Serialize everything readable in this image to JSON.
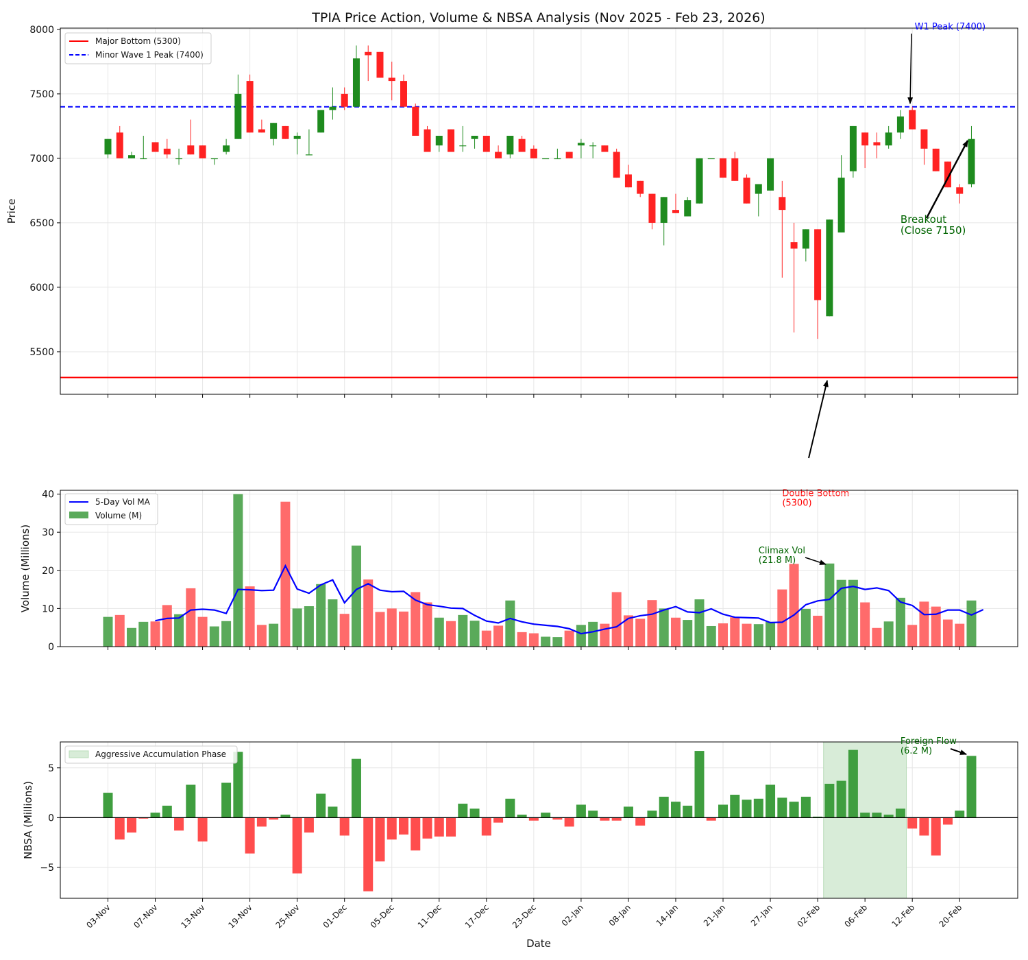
{
  "chart_data": {
    "type": "candlestick+bar",
    "title": "TPIA Price Action, Volume & NBSA Analysis (Nov 2025 - Feb 23, 2026)",
    "xlabel": "Date",
    "x_ticks": [
      {
        "i": 0,
        "label": "03-Nov"
      },
      {
        "i": 4,
        "label": "07-Nov"
      },
      {
        "i": 8,
        "label": "13-Nov"
      },
      {
        "i": 12,
        "label": "19-Nov"
      },
      {
        "i": 16,
        "label": "25-Nov"
      },
      {
        "i": 20,
        "label": "01-Dec"
      },
      {
        "i": 24,
        "label": "05-Dec"
      },
      {
        "i": 28,
        "label": "11-Dec"
      },
      {
        "i": 32,
        "label": "17-Dec"
      },
      {
        "i": 36,
        "label": "23-Dec"
      },
      {
        "i": 40,
        "label": "02-Jan"
      },
      {
        "i": 44,
        "label": "08-Jan"
      },
      {
        "i": 48,
        "label": "14-Jan"
      },
      {
        "i": 52,
        "label": "21-Jan"
      },
      {
        "i": 56,
        "label": "27-Jan"
      },
      {
        "i": 60,
        "label": "02-Feb"
      },
      {
        "i": 64,
        "label": "06-Feb"
      },
      {
        "i": 68,
        "label": "12-Feb"
      },
      {
        "i": 72,
        "label": "20-Feb"
      }
    ],
    "colors": {
      "up": "#1e8b1e",
      "down": "#ff2222",
      "vol_up": "#5aaa5a",
      "vol_down": "#ff6b6b",
      "ma": "#0000ff",
      "bottom": "#ff0000",
      "peak": "#0000ff",
      "accum": "#d8ecd8"
    },
    "price": {
      "ylabel": "Price",
      "ylim": [
        5170,
        8010
      ],
      "yticks": [
        5500,
        6000,
        6500,
        7000,
        7500,
        8000
      ],
      "legend": [
        {
          "label": "Major Bottom (5300)",
          "style": "solid",
          "color": "#ff0000"
        },
        {
          "label": "Minor Wave 1 Peak (7400)",
          "style": "dashed",
          "color": "#0000ff"
        }
      ],
      "hlines": [
        {
          "y": 5300,
          "color": "#ff0000",
          "style": "solid"
        },
        {
          "y": 7400,
          "color": "#0000ff",
          "style": "dashed"
        }
      ],
      "candles": [
        {
          "o": 7030,
          "h": 7150,
          "l": 7000,
          "c": 7150
        },
        {
          "o": 7200,
          "h": 7250,
          "l": 7000,
          "c": 7000
        },
        {
          "o": 7000,
          "h": 7050,
          "l": 7000,
          "c": 7025
        },
        {
          "o": 7000,
          "h": 7175,
          "l": 7000,
          "c": 7000
        },
        {
          "o": 7125,
          "h": 7125,
          "l": 7050,
          "c": 7050
        },
        {
          "o": 7075,
          "h": 7150,
          "l": 7000,
          "c": 7030
        },
        {
          "o": 7000,
          "h": 7075,
          "l": 6950,
          "c": 7000
        },
        {
          "o": 7100,
          "h": 7300,
          "l": 7030,
          "c": 7030
        },
        {
          "o": 7100,
          "h": 7100,
          "l": 7000,
          "c": 7000
        },
        {
          "o": 7000,
          "h": 7000,
          "l": 6950,
          "c": 7000
        },
        {
          "o": 7050,
          "h": 7150,
          "l": 7030,
          "c": 7100
        },
        {
          "o": 7150,
          "h": 7650,
          "l": 7150,
          "c": 7500
        },
        {
          "o": 7600,
          "h": 7650,
          "l": 7200,
          "c": 7200
        },
        {
          "o": 7225,
          "h": 7300,
          "l": 7200,
          "c": 7200
        },
        {
          "o": 7150,
          "h": 7275,
          "l": 7100,
          "c": 7275
        },
        {
          "o": 7250,
          "h": 7250,
          "l": 7150,
          "c": 7150
        },
        {
          "o": 7150,
          "h": 7200,
          "l": 7030,
          "c": 7175
        },
        {
          "o": 7030,
          "h": 7225,
          "l": 7030,
          "c": 7030
        },
        {
          "o": 7200,
          "h": 7375,
          "l": 7200,
          "c": 7375
        },
        {
          "o": 7375,
          "h": 7550,
          "l": 7300,
          "c": 7400
        },
        {
          "o": 7500,
          "h": 7550,
          "l": 7375,
          "c": 7400
        },
        {
          "o": 7400,
          "h": 7875,
          "l": 7400,
          "c": 7775
        },
        {
          "o": 7825,
          "h": 7875,
          "l": 7600,
          "c": 7800
        },
        {
          "o": 7825,
          "h": 7825,
          "l": 7625,
          "c": 7625
        },
        {
          "o": 7625,
          "h": 7750,
          "l": 7450,
          "c": 7600
        },
        {
          "o": 7600,
          "h": 7650,
          "l": 7400,
          "c": 7400
        },
        {
          "o": 7400,
          "h": 7425,
          "l": 7175,
          "c": 7175
        },
        {
          "o": 7225,
          "h": 7250,
          "l": 7050,
          "c": 7050
        },
        {
          "o": 7100,
          "h": 7175,
          "l": 7050,
          "c": 7175
        },
        {
          "o": 7225,
          "h": 7225,
          "l": 7050,
          "c": 7050
        },
        {
          "o": 7100,
          "h": 7250,
          "l": 7050,
          "c": 7100
        },
        {
          "o": 7150,
          "h": 7175,
          "l": 7075,
          "c": 7175
        },
        {
          "o": 7175,
          "h": 7175,
          "l": 7050,
          "c": 7050
        },
        {
          "o": 7050,
          "h": 7100,
          "l": 7000,
          "c": 7000
        },
        {
          "o": 7030,
          "h": 7175,
          "l": 7000,
          "c": 7175
        },
        {
          "o": 7150,
          "h": 7175,
          "l": 7050,
          "c": 7050
        },
        {
          "o": 7075,
          "h": 7100,
          "l": 7000,
          "c": 7000
        },
        {
          "o": 7000,
          "h": 7000,
          "l": 7000,
          "c": 7000
        },
        {
          "o": 7000,
          "h": 7075,
          "l": 7000,
          "c": 7000
        },
        {
          "o": 7050,
          "h": 7050,
          "l": 7000,
          "c": 7000
        },
        {
          "o": 7100,
          "h": 7150,
          "l": 7000,
          "c": 7120
        },
        {
          "o": 7100,
          "h": 7125,
          "l": 7000,
          "c": 7100
        },
        {
          "o": 7100,
          "h": 7100,
          "l": 7050,
          "c": 7050
        },
        {
          "o": 7050,
          "h": 7075,
          "l": 6850,
          "c": 6850
        },
        {
          "o": 6875,
          "h": 6950,
          "l": 6775,
          "c": 6775
        },
        {
          "o": 6825,
          "h": 6825,
          "l": 6700,
          "c": 6725
        },
        {
          "o": 6725,
          "h": 6725,
          "l": 6450,
          "c": 6500
        },
        {
          "o": 6500,
          "h": 6700,
          "l": 6325,
          "c": 6700
        },
        {
          "o": 6600,
          "h": 6725,
          "l": 6575,
          "c": 6575
        },
        {
          "o": 6550,
          "h": 6700,
          "l": 6550,
          "c": 6675
        },
        {
          "o": 6650,
          "h": 7000,
          "l": 6650,
          "c": 7000
        },
        {
          "o": 7000,
          "h": 7000,
          "l": 7000,
          "c": 7000
        },
        {
          "o": 7000,
          "h": 7000,
          "l": 6850,
          "c": 6850
        },
        {
          "o": 7000,
          "h": 7050,
          "l": 6825,
          "c": 6825
        },
        {
          "o": 6850,
          "h": 6875,
          "l": 6650,
          "c": 6650
        },
        {
          "o": 6725,
          "h": 6800,
          "l": 6550,
          "c": 6800
        },
        {
          "o": 6750,
          "h": 7000,
          "l": 6750,
          "c": 7000
        },
        {
          "o": 6700,
          "h": 6825,
          "l": 6075,
          "c": 6600
        },
        {
          "o": 6350,
          "h": 6500,
          "l": 5650,
          "c": 6300
        },
        {
          "o": 6300,
          "h": 6450,
          "l": 6200,
          "c": 6450
        },
        {
          "o": 6450,
          "h": 6450,
          "l": 5600,
          "c": 5900
        },
        {
          "o": 5775,
          "h": 6525,
          "l": 5775,
          "c": 6525
        },
        {
          "o": 6425,
          "h": 7025,
          "l": 6425,
          "c": 6850
        },
        {
          "o": 6900,
          "h": 7250,
          "l": 6850,
          "c": 7250
        },
        {
          "o": 7200,
          "h": 7200,
          "l": 6925,
          "c": 7100
        },
        {
          "o": 7125,
          "h": 7200,
          "l": 7000,
          "c": 7100
        },
        {
          "o": 7100,
          "h": 7250,
          "l": 7075,
          "c": 7200
        },
        {
          "o": 7200,
          "h": 7375,
          "l": 7150,
          "c": 7325
        },
        {
          "o": 7375,
          "h": 7400,
          "l": 7225,
          "c": 7225
        },
        {
          "o": 7225,
          "h": 7225,
          "l": 6950,
          "c": 7075
        },
        {
          "o": 7075,
          "h": 7075,
          "l": 6900,
          "c": 6900
        },
        {
          "o": 6975,
          "h": 6975,
          "l": 6775,
          "c": 6775
        },
        {
          "o": 6775,
          "h": 6800,
          "l": 6650,
          "c": 6725
        },
        {
          "o": 6800,
          "h": 7250,
          "l": 6775,
          "c": 7150
        }
      ],
      "annotations": [
        {
          "id": "w1-peak",
          "text": [
            "W1 Peak (7400)"
          ],
          "color": "#0000ff",
          "xy": [
            69,
            7400
          ],
          "xytext": [
            68.2,
            8000
          ]
        },
        {
          "id": "breakout",
          "text": [
            "Breakout",
            "(Close 7150)"
          ],
          "color": "#006400",
          "xy": [
            73,
            7150
          ],
          "xytext": [
            67,
            6500
          ]
        },
        {
          "id": "double-bottom",
          "text": [
            "Double Bottom",
            "(5300)"
          ],
          "color": "#ff0000",
          "xy": [
            61,
            5300
          ],
          "xytext": [
            57,
            4380
          ]
        }
      ]
    },
    "volume": {
      "ylabel": "Volume (Millions)",
      "ylim": [
        0,
        41
      ],
      "yticks": [
        0,
        10,
        20,
        30,
        40
      ],
      "legend": [
        {
          "label": "5-Day Vol MA",
          "kind": "line"
        },
        {
          "label": "Volume (M)",
          "kind": "bar"
        }
      ],
      "values": [
        7.8,
        8.3,
        4.9,
        6.5,
        6.6,
        10.9,
        8.5,
        15.3,
        7.8,
        5.3,
        6.7,
        40,
        15.8,
        5.7,
        6,
        38,
        10,
        10.6,
        16.4,
        12.4,
        8.6,
        26.5,
        17.6,
        9.1,
        10,
        9.2,
        14.3,
        11.6,
        7.6,
        6.7,
        8.3,
        6.8,
        4.2,
        5.5,
        12.1,
        3.8,
        3.5,
        2.6,
        2.5,
        4.2,
        5.7,
        6.5,
        6,
        14.3,
        8.2,
        7.3,
        12.2,
        10,
        7.6,
        7,
        12.4,
        5.4,
        6.1,
        7.7,
        6,
        5.9,
        6.5,
        15,
        21.7,
        9.9,
        8.1,
        21.8,
        17.5,
        17.5,
        11.6,
        4.9,
        6.6,
        12.8,
        5.7,
        11.8,
        10.5,
        7.1,
        6,
        12.1
      ],
      "ma": [
        null,
        null,
        null,
        null,
        6.8,
        7.4,
        7.5,
        9.6,
        9.8,
        9.6,
        8.7,
        15,
        14.9,
        14.7,
        14.8,
        21.2,
        15.1,
        14,
        16.2,
        17.5,
        11.5,
        15,
        16.5,
        14.8,
        14.4,
        14.5,
        12.2,
        11,
        10.6,
        10.1,
        10,
        8.2,
        6.7,
        6.2,
        7.4,
        6.5,
        5.9,
        5.6,
        5.3,
        4.7,
        3.4,
        3.9,
        4.6,
        5.2,
        7.4,
        8.1,
        8.5,
        9.6,
        10.5,
        9.1,
        8.9,
        9.9,
        8.5,
        7.7,
        7.6,
        7.5,
        6.3,
        6.4,
        8.3,
        11,
        12,
        12.4,
        15.3,
        15.8,
        15,
        15.4,
        14.7,
        11.7,
        10.8,
        8.4,
        8.5,
        9.6,
        9.6,
        8.3,
        9.7
      ],
      "annotation": {
        "id": "climax-vol",
        "text": [
          "Climax Vol",
          "(21.8 M)"
        ],
        "color": "#006400",
        "xy": [
          61,
          21.8
        ],
        "xytext": [
          55,
          24.5
        ]
      }
    },
    "nbsa": {
      "ylabel": "NBSA (Millions)",
      "ylim": [
        -8.1,
        7.6
      ],
      "yticks": [
        -5,
        0,
        5
      ],
      "legend": [
        {
          "label": "Aggressive Accumulation Phase",
          "kind": "patch"
        }
      ],
      "values": [
        2.5,
        -2.2,
        -1.5,
        -0.1,
        0.5,
        1.2,
        -1.3,
        3.3,
        -2.4,
        0,
        3.5,
        6.6,
        -3.6,
        -0.9,
        -0.2,
        0.3,
        -5.6,
        -1.5,
        2.4,
        1.1,
        -1.8,
        5.9,
        -7.4,
        -4.4,
        -2.2,
        -1.7,
        -3.3,
        -2.1,
        -1.9,
        -1.9,
        1.4,
        0.9,
        -1.8,
        -0.5,
        1.9,
        0.3,
        -0.3,
        0.5,
        -0.2,
        -0.9,
        1.3,
        0.7,
        -0.3,
        -0.3,
        1.1,
        -0.8,
        0.7,
        2.1,
        1.6,
        1.2,
        6.7,
        -0.3,
        1.3,
        2.3,
        1.8,
        1.9,
        3.3,
        2,
        1.6,
        2.1,
        0.1,
        3.4,
        3.7,
        6.8,
        0.5,
        0.5,
        0.3,
        0.9,
        -1.1,
        -1.8,
        -3.8,
        -0.7,
        0.7,
        6.2
      ],
      "accum_span": [
        60.5,
        67.5
      ],
      "annotation": {
        "id": "foreign-flow",
        "text": [
          "Foreign Flow",
          "(6.2 M)"
        ],
        "color": "#006400",
        "xy": [
          73,
          6.2
        ],
        "xytext": [
          67,
          7.4
        ]
      }
    }
  }
}
